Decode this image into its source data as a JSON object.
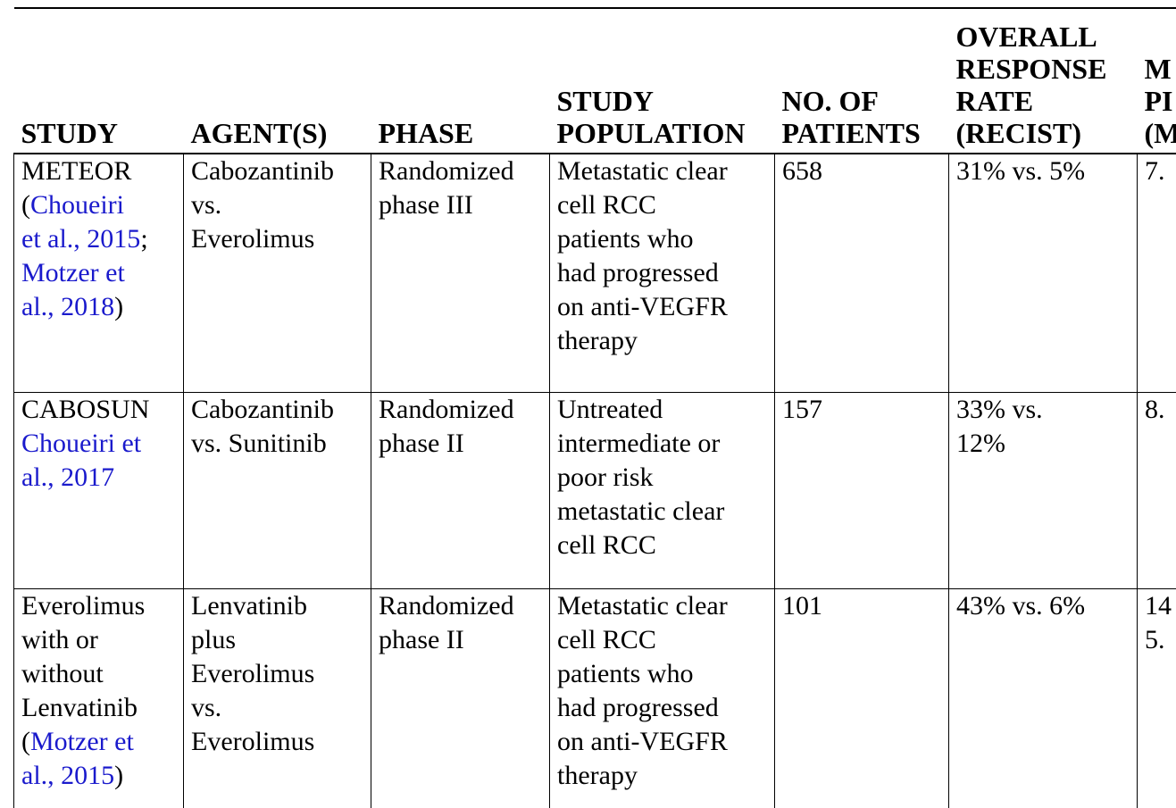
{
  "table": {
    "headers": [
      [
        "STUDY"
      ],
      [
        "AGENT(S)"
      ],
      [
        "PHASE"
      ],
      [
        "STUDY",
        "POPULATION"
      ],
      [
        "NO. OF",
        "PATIENTS"
      ],
      [
        "OVERALL",
        "RESPONSE",
        "RATE",
        "(RECIST)"
      ],
      [
        "M",
        "PI",
        "(M"
      ]
    ],
    "rows": [
      {
        "study": [
          [
            {
              "t": "METEOR",
              "link": false
            }
          ],
          [
            {
              "t": "(",
              "link": false
            },
            {
              "t": "Choueiri",
              "link": true
            }
          ],
          [
            {
              "t": "et al., 2015",
              "link": true
            },
            {
              "t": ";",
              "link": false
            }
          ],
          [
            {
              "t": "Motzer et",
              "link": true
            }
          ],
          [
            {
              "t": "al., 2018",
              "link": true
            },
            {
              "t": ")",
              "link": false
            }
          ]
        ],
        "agents": [
          "Cabozantinib",
          "vs.",
          "Everolimus"
        ],
        "phase": [
          "Randomized",
          "phase III"
        ],
        "population": [
          "Metastatic clear",
          "cell RCC",
          "patients who",
          "had progressed",
          "on anti-VEGFR",
          "therapy"
        ],
        "patients": [
          "658"
        ],
        "orr": [
          "31% vs. 5%"
        ],
        "pfs": [
          "7."
        ]
      },
      {
        "study": [
          [
            {
              "t": "CABOSUN",
              "link": false
            }
          ],
          [
            {
              "t": "Choueiri et",
              "link": true
            }
          ],
          [
            {
              "t": "al., 2017",
              "link": true
            }
          ]
        ],
        "agents": [
          "Cabozantinib",
          "vs. Sunitinib"
        ],
        "phase": [
          "Randomized",
          "phase II"
        ],
        "population": [
          "Untreated",
          "intermediate or",
          "poor risk",
          "metastatic clear",
          "cell RCC"
        ],
        "patients": [
          "157"
        ],
        "orr": [
          "33% vs.",
          "12%"
        ],
        "pfs": [
          "8."
        ]
      },
      {
        "study": [
          [
            {
              "t": "Everolimus",
              "link": false
            }
          ],
          [
            {
              "t": "with or",
              "link": false
            }
          ],
          [
            {
              "t": "without",
              "link": false
            }
          ],
          [
            {
              "t": "Lenvatinib",
              "link": false
            }
          ],
          [
            {
              "t": "(",
              "link": false
            },
            {
              "t": "Motzer et",
              "link": true
            }
          ],
          [
            {
              "t": "al., 2015",
              "link": true
            },
            {
              "t": ")",
              "link": false
            }
          ]
        ],
        "agents": [
          "Lenvatinib",
          "plus",
          "Everolimus",
          "vs.",
          "Everolimus"
        ],
        "phase": [
          "Randomized",
          "phase II"
        ],
        "population": [
          "Metastatic clear",
          "cell RCC",
          "patients who",
          "had progressed",
          "on anti-VEGFR",
          "therapy"
        ],
        "patients": [
          "101"
        ],
        "orr": [
          "43% vs. 6%"
        ],
        "pfs": [
          "14",
          "5."
        ]
      }
    ]
  },
  "colors": {
    "link": "#1a1acc",
    "text": "#000000",
    "background": "#ffffff"
  }
}
